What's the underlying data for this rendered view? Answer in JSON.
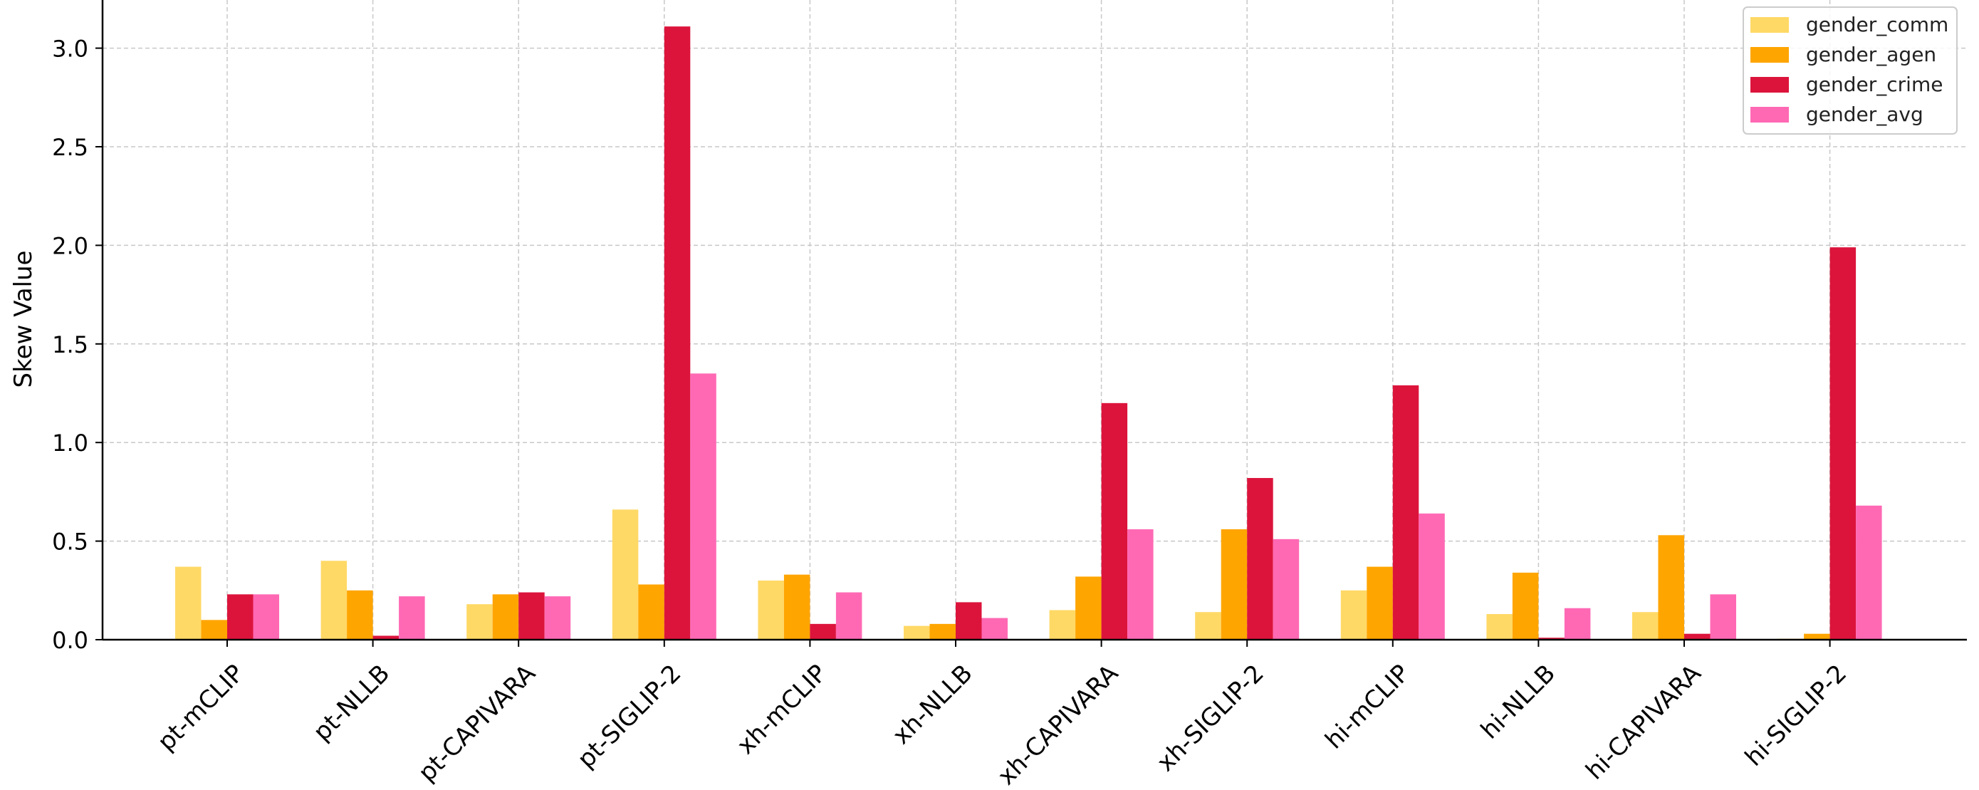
{
  "chart_data": {
    "type": "bar",
    "title": "",
    "xlabel": "",
    "ylabel": "Skew Value",
    "ylim": [
      0,
      3.1
    ],
    "yticks": [
      0.0,
      0.5,
      1.0,
      1.5,
      2.0,
      2.5,
      3.0
    ],
    "ytick_labels": [
      "0.0",
      "0.5",
      "1.0",
      "1.5",
      "2.0",
      "2.5",
      "3.0"
    ],
    "grid": true,
    "legend_position": "top-right",
    "categories": [
      "pt-mCLIP",
      "pt-NLLB",
      "pt-CAPIVARA",
      "pt-SIGLIP-2",
      "xh-mCLIP",
      "xh-NLLB",
      "xh-CAPIVARA",
      "xh-SIGLIP-2",
      "hi-mCLIP",
      "hi-NLLB",
      "hi-CAPIVARA",
      "hi-SIGLIP-2"
    ],
    "series": [
      {
        "name": "gender_comm",
        "color": "#FFD966",
        "values": [
          0.37,
          0.4,
          0.18,
          0.66,
          0.3,
          0.07,
          0.15,
          0.14,
          0.25,
          0.13,
          0.14,
          0.005
        ]
      },
      {
        "name": "gender_agen",
        "color": "#FFA500",
        "values": [
          0.1,
          0.25,
          0.23,
          0.28,
          0.33,
          0.08,
          0.32,
          0.56,
          0.37,
          0.34,
          0.53,
          0.03
        ]
      },
      {
        "name": "gender_crime",
        "color": "#DC143C",
        "values": [
          0.23,
          0.02,
          0.24,
          3.11,
          0.08,
          0.19,
          1.2,
          0.82,
          1.29,
          0.01,
          0.03,
          1.99
        ]
      },
      {
        "name": "gender_avg",
        "color": "#FF69B4",
        "values": [
          0.23,
          0.22,
          0.22,
          1.35,
          0.24,
          0.11,
          0.56,
          0.51,
          0.64,
          0.16,
          0.23,
          0.68
        ]
      }
    ]
  }
}
